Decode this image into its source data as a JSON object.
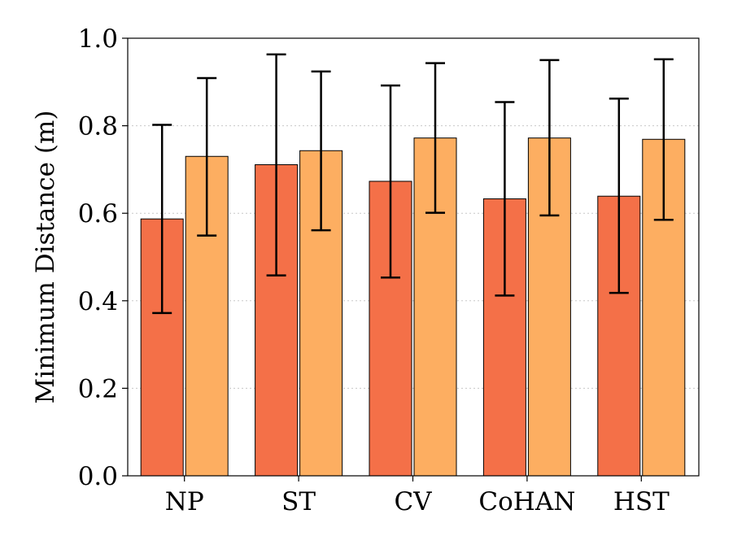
{
  "chart_data": {
    "type": "bar",
    "categories": [
      "NP",
      "ST",
      "CV",
      "CoHAN",
      "HST"
    ],
    "series": [
      {
        "color": "#f47048",
        "values": [
          0.587,
          0.711,
          0.673,
          0.633,
          0.639
        ],
        "err_low": [
          0.372,
          0.458,
          0.453,
          0.412,
          0.418
        ],
        "err_high": [
          0.802,
          0.963,
          0.892,
          0.854,
          0.862
        ]
      },
      {
        "color": "#fdae61",
        "values": [
          0.73,
          0.743,
          0.772,
          0.772,
          0.769
        ],
        "err_low": [
          0.549,
          0.561,
          0.601,
          0.595,
          0.585
        ],
        "err_high": [
          0.909,
          0.924,
          0.943,
          0.95,
          0.952
        ]
      }
    ],
    "xlabel": "",
    "ylabel": "Minimum Distance (m)",
    "ylim": [
      0.0,
      1.0
    ],
    "yticks": [
      "0.0",
      "0.2",
      "0.4",
      "0.6",
      "0.8",
      "1.0"
    ],
    "grid": "y-dotted",
    "legend": "none"
  }
}
